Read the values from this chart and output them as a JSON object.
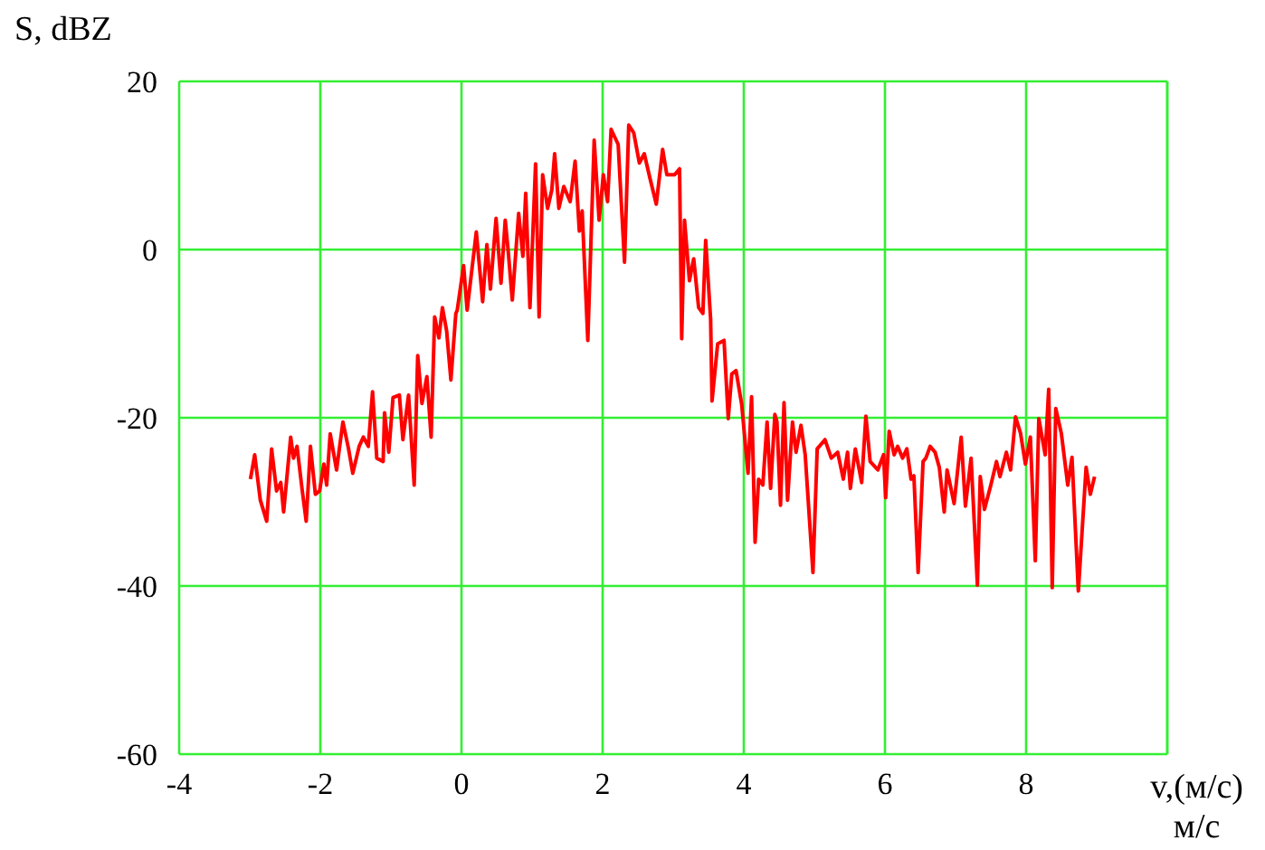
{
  "chart_data": {
    "type": "line",
    "ylabel": "S, dBZ",
    "xlabel": "v,(м/с)\nм/с",
    "xlim": [
      -4,
      10
    ],
    "xticks": [
      -4,
      -2,
      0,
      2,
      4,
      6,
      8
    ],
    "ylim": [
      -60,
      20
    ],
    "yticks": [
      -60,
      -40,
      -20,
      0,
      20
    ],
    "grid": true,
    "marker": "none",
    "line_style": "solid",
    "series": [
      {
        "color": "#ff0000",
        "x": [
          -2.99,
          -2.93,
          -2.85,
          -2.76,
          -2.69,
          -2.62,
          -2.56,
          -2.52,
          -2.42,
          -2.38,
          -2.33,
          -2.26,
          -2.2,
          -2.14,
          -2.07,
          -2.01,
          -1.95,
          -1.91,
          -1.86,
          -1.77,
          -1.68,
          -1.6,
          -1.54,
          -1.45,
          -1.39,
          -1.32,
          -1.26,
          -1.2,
          -1.11,
          -1.09,
          -1.03,
          -0.97,
          -0.88,
          -0.83,
          -0.75,
          -0.67,
          -0.62,
          -0.56,
          -0.49,
          -0.43,
          -0.38,
          -0.32,
          -0.27,
          -0.21,
          -0.15,
          -0.08,
          -0.06,
          0.03,
          0.08,
          0.21,
          0.3,
          0.36,
          0.41,
          0.49,
          0.56,
          0.62,
          0.66,
          0.72,
          0.81,
          0.87,
          0.91,
          0.97,
          1.05,
          1.1,
          1.15,
          1.22,
          1.28,
          1.32,
          1.38,
          1.45,
          1.54,
          1.61,
          1.67,
          1.71,
          1.79,
          1.88,
          1.95,
          2.01,
          2.07,
          2.12,
          2.22,
          2.31,
          2.37,
          2.44,
          2.52,
          2.59,
          2.67,
          2.76,
          2.85,
          2.91,
          3.02,
          3.09,
          3.12,
          3.16,
          3.23,
          3.29,
          3.36,
          3.42,
          3.46,
          3.53,
          3.55,
          3.63,
          3.72,
          3.78,
          3.83,
          3.89,
          3.97,
          4.06,
          4.11,
          4.16,
          4.21,
          4.27,
          4.33,
          4.38,
          4.44,
          4.47,
          4.52,
          4.57,
          4.62,
          4.69,
          4.74,
          4.81,
          4.87,
          4.98,
          5.04,
          5.15,
          5.24,
          5.33,
          5.41,
          5.47,
          5.51,
          5.58,
          5.67,
          5.73,
          5.79,
          5.9,
          5.98,
          6.01,
          6.06,
          6.13,
          6.18,
          6.25,
          6.31,
          6.37,
          6.41,
          6.47,
          6.54,
          6.58,
          6.64,
          6.71,
          6.77,
          6.84,
          6.88,
          6.98,
          7.08,
          7.14,
          7.22,
          7.31,
          7.35,
          7.41,
          7.5,
          7.58,
          7.63,
          7.72,
          7.78,
          7.85,
          7.92,
          7.99,
          8.06,
          8.13,
          8.18,
          8.27,
          8.32,
          8.37,
          8.42,
          8.5,
          8.59,
          8.65,
          8.74,
          8.85,
          8.91,
          8.97
        ],
        "values": [
          -27.3,
          -24.4,
          -29.8,
          -32.3,
          -23.7,
          -28.7,
          -27.7,
          -31.2,
          -22.3,
          -24.8,
          -23.4,
          -28.4,
          -32.3,
          -23.4,
          -29.1,
          -28.7,
          -25.5,
          -28,
          -21.9,
          -26.2,
          -20.5,
          -23.7,
          -26.6,
          -23.4,
          -22.3,
          -23.4,
          -16.9,
          -24.8,
          -25.2,
          -19.4,
          -24.1,
          -17.6,
          -17.3,
          -22.6,
          -17.3,
          -28,
          -12.6,
          -18.3,
          -15.1,
          -22.3,
          -8,
          -10.5,
          -6.9,
          -9.7,
          -15.5,
          -7.6,
          -7.2,
          -1.9,
          -7.2,
          2.1,
          -6.2,
          0.6,
          -4.7,
          3.7,
          -4,
          3.5,
          0,
          -6,
          4.3,
          -0.8,
          6.7,
          -6.9,
          10.2,
          -8,
          8.9,
          4.9,
          7.1,
          11.4,
          4.9,
          7.5,
          5.7,
          10.5,
          2.2,
          4.6,
          -10.8,
          13,
          3.5,
          8.9,
          5.7,
          14.3,
          12.5,
          -1.5,
          14.8,
          13.9,
          10.3,
          11.4,
          8.5,
          5.4,
          11.9,
          8.9,
          8.9,
          9.6,
          -10.6,
          3.5,
          -3.7,
          -1.1,
          -6.9,
          -7.6,
          1.1,
          -8.3,
          -18,
          -11.2,
          -10.8,
          -20.1,
          -14.8,
          -14.4,
          -18.4,
          -26.6,
          -17.5,
          -34.8,
          -27.3,
          -28,
          -20.5,
          -28.4,
          -19.6,
          -20.5,
          -30.4,
          -18.2,
          -29.8,
          -20.5,
          -24.1,
          -20.9,
          -24.4,
          -38.4,
          -23.7,
          -22.6,
          -24.8,
          -24.1,
          -27.3,
          -24.1,
          -28.4,
          -23.7,
          -27.7,
          -19.8,
          -25.2,
          -26.2,
          -24.4,
          -29.5,
          -21.6,
          -24.4,
          -23.4,
          -24.8,
          -23.7,
          -27.3,
          -26.9,
          -38.4,
          -25.2,
          -24.8,
          -23.4,
          -24.1,
          -25.9,
          -31.2,
          -26.2,
          -30.2,
          -22.3,
          -30.5,
          -24.8,
          -39.9,
          -27,
          -30.9,
          -28,
          -25.2,
          -27,
          -24.1,
          -26.2,
          -19.9,
          -21.8,
          -25.5,
          -22.3,
          -37,
          -20.1,
          -24.4,
          -16.6,
          -40.2,
          -18.9,
          -21.9,
          -28,
          -24.7,
          -40.6,
          -25.9,
          -29.1,
          -27
        ]
      }
    ]
  }
}
